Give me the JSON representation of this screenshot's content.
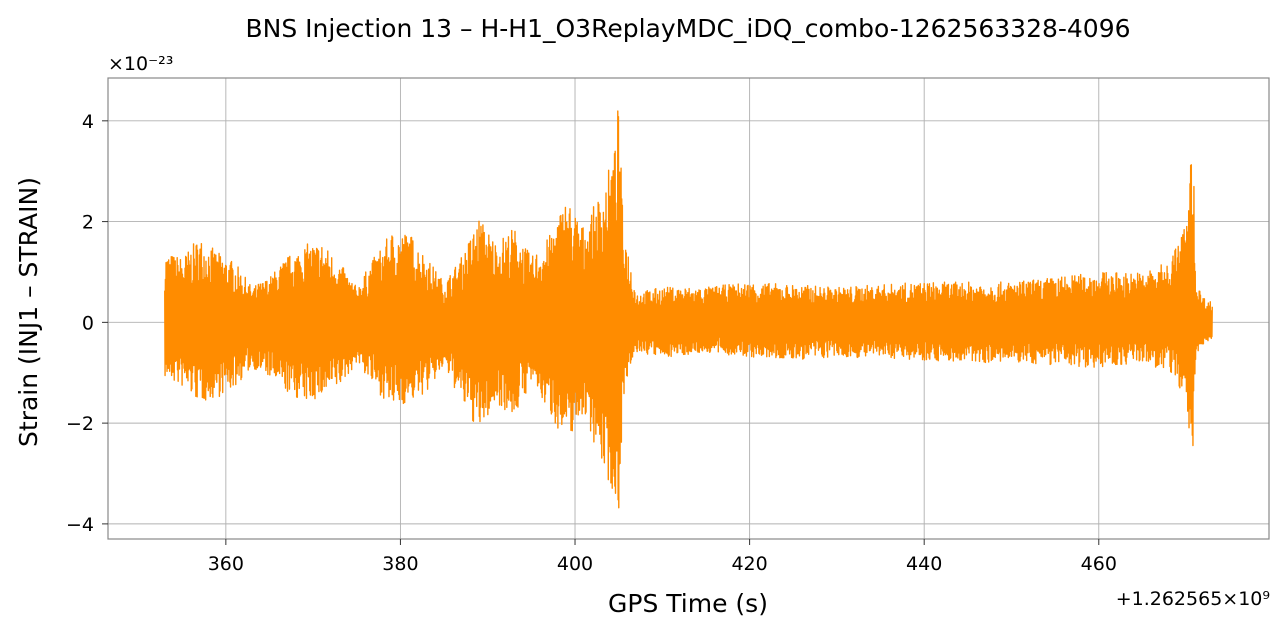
{
  "chart_data": {
    "type": "line",
    "title": "BNS Injection 13 – H-H1_O3ReplayMDC_iDQ_combo-1262563328-4096",
    "xlabel": "GPS Time (s)",
    "ylabel": "Strain (INJ1 – STRAIN)",
    "x_offset_label": "+1.262565×10⁹",
    "y_scale_label": "×10⁻²³",
    "xlim": [
      346.5,
      479.5
    ],
    "ylim": [
      -4.3,
      4.85
    ],
    "x_ticks": [
      360,
      380,
      400,
      420,
      440,
      460
    ],
    "y_ticks": [
      -4,
      -2,
      0,
      2,
      4
    ],
    "x_tick_labels": [
      "360",
      "380",
      "400",
      "420",
      "440",
      "460"
    ],
    "y_tick_labels": [
      "−4",
      "−2",
      "0",
      "2",
      "4"
    ],
    "grid": true,
    "legend": "none",
    "series": [
      {
        "color": "#ff8c00",
        "x_start": 353,
        "x_end": 473,
        "envelope_x": [
          353,
          355,
          357,
          359,
          361,
          363,
          365,
          367,
          369,
          371,
          373,
          375,
          377,
          379,
          381,
          383,
          385,
          387,
          389,
          391,
          393,
          395,
          397,
          399,
          401,
          403,
          404.5,
          405,
          405.5,
          407,
          410,
          415,
          420,
          425,
          430,
          435,
          440,
          445,
          450,
          455,
          460,
          465,
          468,
          470,
          470.8,
          471,
          471.2,
          472,
          473
        ],
        "envelope_upper": [
          1.4,
          1.3,
          1.7,
          1.4,
          1.2,
          0.7,
          0.9,
          1.3,
          1.55,
          1.6,
          1.2,
          0.7,
          1.3,
          1.8,
          1.8,
          1.3,
          0.8,
          1.3,
          2.1,
          1.6,
          1.9,
          1.3,
          1.7,
          2.5,
          1.9,
          2.6,
          3.4,
          4.45,
          2.0,
          0.6,
          0.7,
          0.7,
          0.8,
          0.75,
          0.7,
          0.75,
          0.8,
          0.8,
          0.8,
          0.9,
          1.0,
          1.0,
          1.2,
          2.0,
          3.9,
          1.6,
          0.8,
          0.5,
          0.4
        ],
        "envelope_lower": [
          -1.1,
          -1.3,
          -1.6,
          -1.5,
          -1.3,
          -0.9,
          -1.1,
          -1.4,
          -1.6,
          -1.5,
          -1.3,
          -0.8,
          -1.3,
          -1.7,
          -1.6,
          -1.4,
          -0.9,
          -1.6,
          -2.2,
          -1.6,
          -1.9,
          -1.2,
          -1.8,
          -2.4,
          -1.8,
          -2.8,
          -3.5,
          -3.9,
          -1.5,
          -0.6,
          -0.7,
          -0.6,
          -0.7,
          -0.75,
          -0.7,
          -0.7,
          -0.75,
          -0.8,
          -0.8,
          -0.85,
          -0.9,
          -0.8,
          -1.0,
          -1.5,
          -3.2,
          -1.4,
          -0.6,
          -0.5,
          -0.3
        ]
      }
    ]
  }
}
